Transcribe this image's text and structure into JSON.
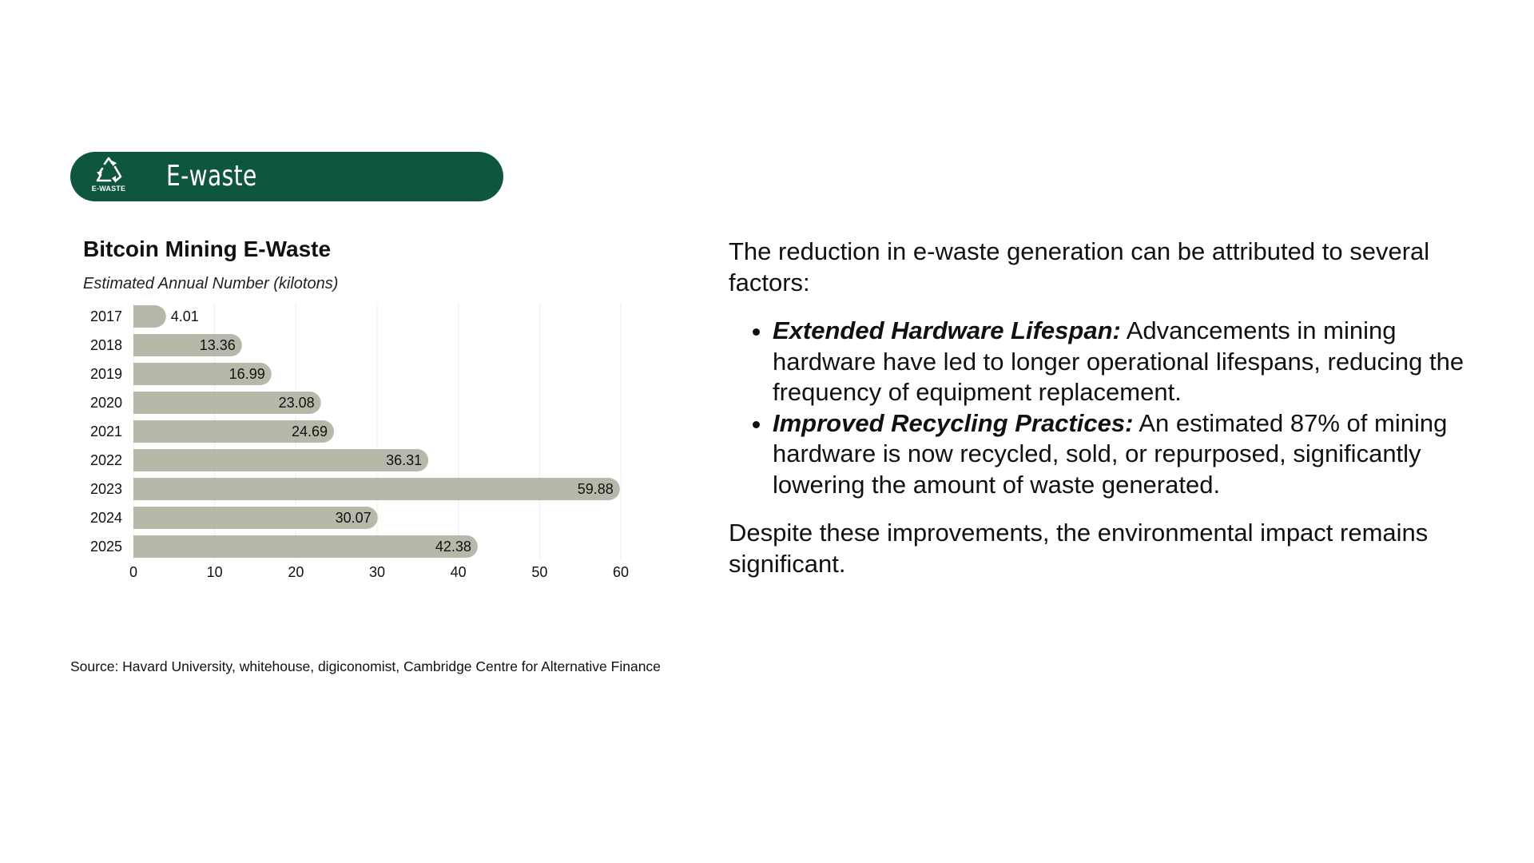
{
  "header": {
    "badge_label": "E-WASTE",
    "title": "E-waste",
    "icon": "recycle-icon",
    "background_color": "#0f5640"
  },
  "chart_data": {
    "type": "bar",
    "orientation": "horizontal",
    "title": "Bitcoin Mining E-Waste",
    "subtitle": "Estimated Annual Number (kilotons)",
    "categories": [
      "2017",
      "2018",
      "2019",
      "2020",
      "2021",
      "2022",
      "2023",
      "2024",
      "2025"
    ],
    "values": [
      4.01,
      13.36,
      16.99,
      23.08,
      24.69,
      36.31,
      59.88,
      30.07,
      42.38
    ],
    "value_labels": [
      "4.01",
      "13.36",
      "16.99",
      "23.08",
      "24.69",
      "36.31",
      "59.88",
      "30.07",
      "42.38"
    ],
    "xlim": [
      0,
      60
    ],
    "x_ticks": [
      "0",
      "10",
      "20",
      "30",
      "40",
      "50",
      "60"
    ],
    "xlabel": "",
    "ylabel": "",
    "grid": true,
    "bar_color": "#b6b9a9"
  },
  "source": "Source: Havard University, whitehouse, digiconomist, Cambridge Centre for Alternative Finance",
  "commentary": {
    "intro": "The reduction in e-waste generation can be attributed to several factors:",
    "bullets": [
      {
        "lead": "Extended Hardware Lifespan:",
        "text": " Advancements in mining hardware have led to longer operational lifespans, reducing the frequency of equipment replacement."
      },
      {
        "lead": "Improved Recycling Practices:",
        "text": " An estimated 87% of mining hardware is now recycled, sold, or repurposed, significantly lowering the amount of waste generated."
      }
    ],
    "conclusion": "Despite these improvements, the environmental impact remains significant."
  }
}
